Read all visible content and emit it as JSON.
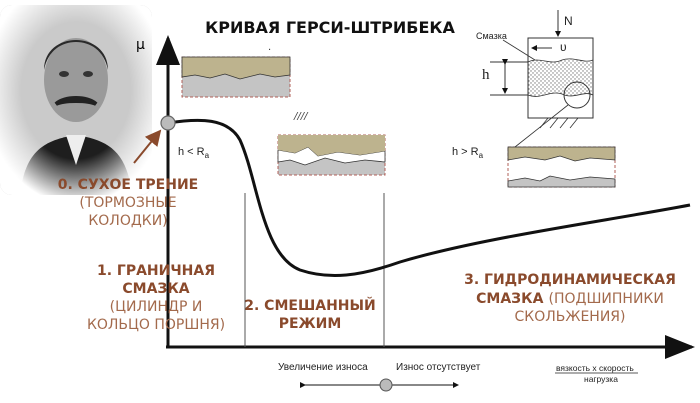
{
  "title": "КРИВАЯ ГЕРСИ-ШТРИБЕКА",
  "y_axis_label": "μ",
  "regimes": [
    {
      "heading": [
        "0. СУХОЕ ТРЕНИЕ"
      ],
      "note": [
        "(ТОРМОЗНЫЕ",
        "КОЛОДКИ)"
      ]
    },
    {
      "heading": [
        "1. ГРАНИЧНАЯ",
        "СМАЗКА"
      ],
      "note": [
        "(ЦИЛИНДР И",
        "КОЛЬЦО ПОРШНЯ)"
      ]
    },
    {
      "heading": [
        "2. СМЕШАННЫЙ",
        "РЕЖИМ"
      ],
      "note": []
    },
    {
      "heading": [
        "3. ГИДРОДИНАМИЧЕСКАЯ",
        "СМАЗКА"
      ],
      "note": [
        "(ПОДШИПНИКИ",
        "СКОЛЬЖЕНИЯ)"
      ]
    }
  ],
  "conditions": {
    "left": "h  < R",
    "right": "h  > R",
    "subscript": "a"
  },
  "schematic": {
    "lubricant": "Смазка",
    "load": "N",
    "velocity": "υ",
    "gap": "h"
  },
  "bottom": {
    "wear_increase": "Увеличение износа",
    "no_wear": "Износ отсутствует",
    "x_numerator": "вязкость x скорость",
    "x_denominator": "нагрузка"
  },
  "colors": {
    "accent": "#8a4a2c",
    "accent_light": "#a36a4c",
    "surface_top": "#bdb38e",
    "surface_bottom": "#c4c4c4",
    "box_border": "#b0605a"
  }
}
